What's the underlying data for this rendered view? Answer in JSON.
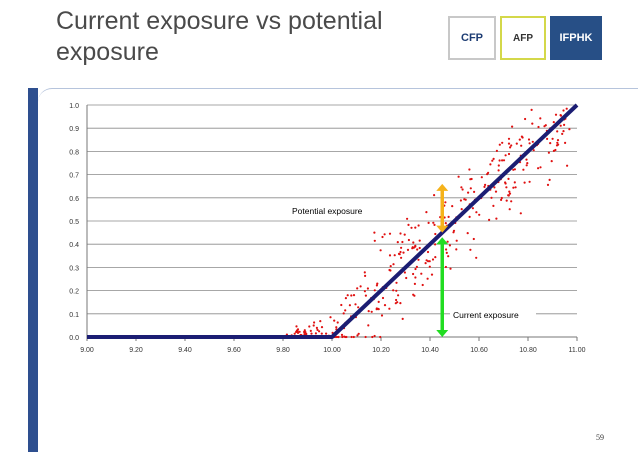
{
  "slide": {
    "title": "Current exposure vs potential exposure",
    "page_number": "59",
    "logos": [
      "CFP",
      "AFP",
      "IFPHK"
    ]
  },
  "colors": {
    "line": "#1b1d73",
    "points": "#e01010",
    "potential_arrow": "#f5b21a",
    "current_arrow": "#22dd22",
    "left_bar": "#2e4f8f"
  },
  "chart_data": {
    "type": "scatter",
    "title": "",
    "xlabel": "",
    "ylabel": "",
    "xlim": [
      9.0,
      11.0
    ],
    "ylim": [
      0.0,
      1.0
    ],
    "x_ticks": [
      "9.00",
      "9.20",
      "9.40",
      "9.60",
      "9.80",
      "10.00",
      "10.20",
      "10.40",
      "10.60",
      "10.80",
      "11.00"
    ],
    "y_ticks": [
      "0.0",
      "0.1",
      "0.2",
      "0.3",
      "0.4",
      "0.5",
      "0.6",
      "0.7",
      "0.8",
      "0.9",
      "1.0"
    ],
    "grid": true,
    "series": [
      {
        "kind": "line",
        "values": [
          [
            9.0,
            0.0
          ],
          [
            10.0,
            0.0
          ],
          [
            11.0,
            1.0
          ]
        ]
      },
      {
        "kind": "scatter",
        "x_range": [
          9.0,
          11.0
        ],
        "spread_visible_from": 9.8,
        "approx_spread": 0.17
      }
    ],
    "annotations": [
      {
        "text": "Potential exposure",
        "arrow": "potential",
        "x": 10.45,
        "from": 0.45,
        "to": 0.66
      },
      {
        "text": "Current exposure",
        "arrow": "current",
        "x": 10.45,
        "from": 0.0,
        "to": 0.43
      }
    ]
  }
}
